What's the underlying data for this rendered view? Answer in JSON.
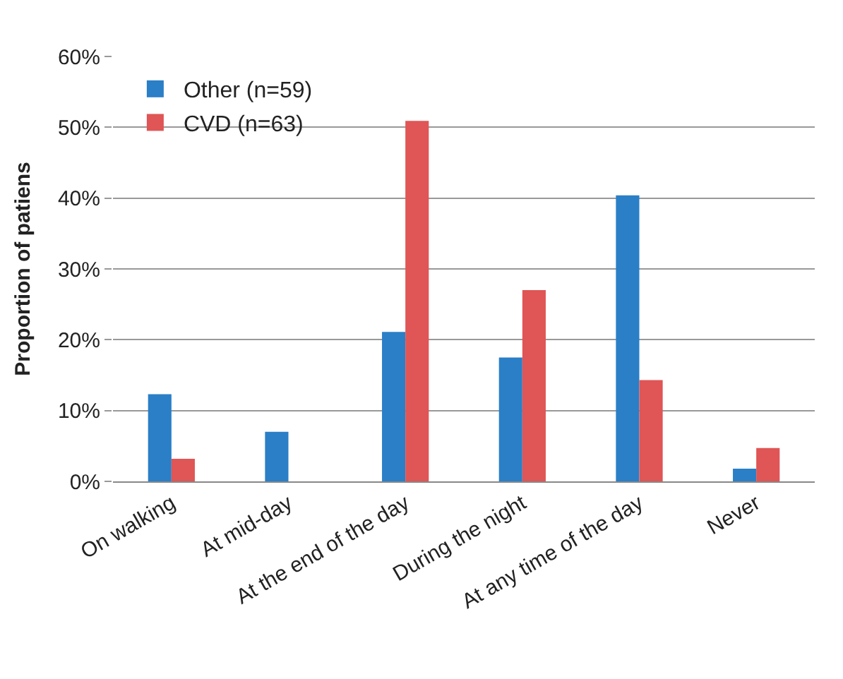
{
  "chart_data": {
    "type": "bar",
    "ylabel": "Proportion of patiens",
    "categories": [
      "On walking",
      "At mid-day",
      "At the end of the day",
      "During the night",
      "At any time of the day",
      "Never"
    ],
    "series": [
      {
        "name": "Other (n=59)",
        "color": "#2a7fc7",
        "values": [
          12.3,
          7.0,
          21.1,
          17.5,
          40.4,
          1.8
        ]
      },
      {
        "name": "CVD (n=63)",
        "color": "#e05555",
        "values": [
          3.2,
          0,
          50.9,
          27.0,
          14.3,
          4.7
        ]
      }
    ],
    "ylim": [
      0,
      60
    ],
    "yticks": [
      {
        "value": 0,
        "label": "0%"
      },
      {
        "value": 10,
        "label": "10%"
      },
      {
        "value": 20,
        "label": "20%"
      },
      {
        "value": 30,
        "label": "30%"
      },
      {
        "value": 40,
        "label": "40%"
      },
      {
        "value": 50,
        "label": "50%"
      },
      {
        "value": 60,
        "label": "60%"
      }
    ],
    "grid": "y",
    "legend": "top left"
  }
}
